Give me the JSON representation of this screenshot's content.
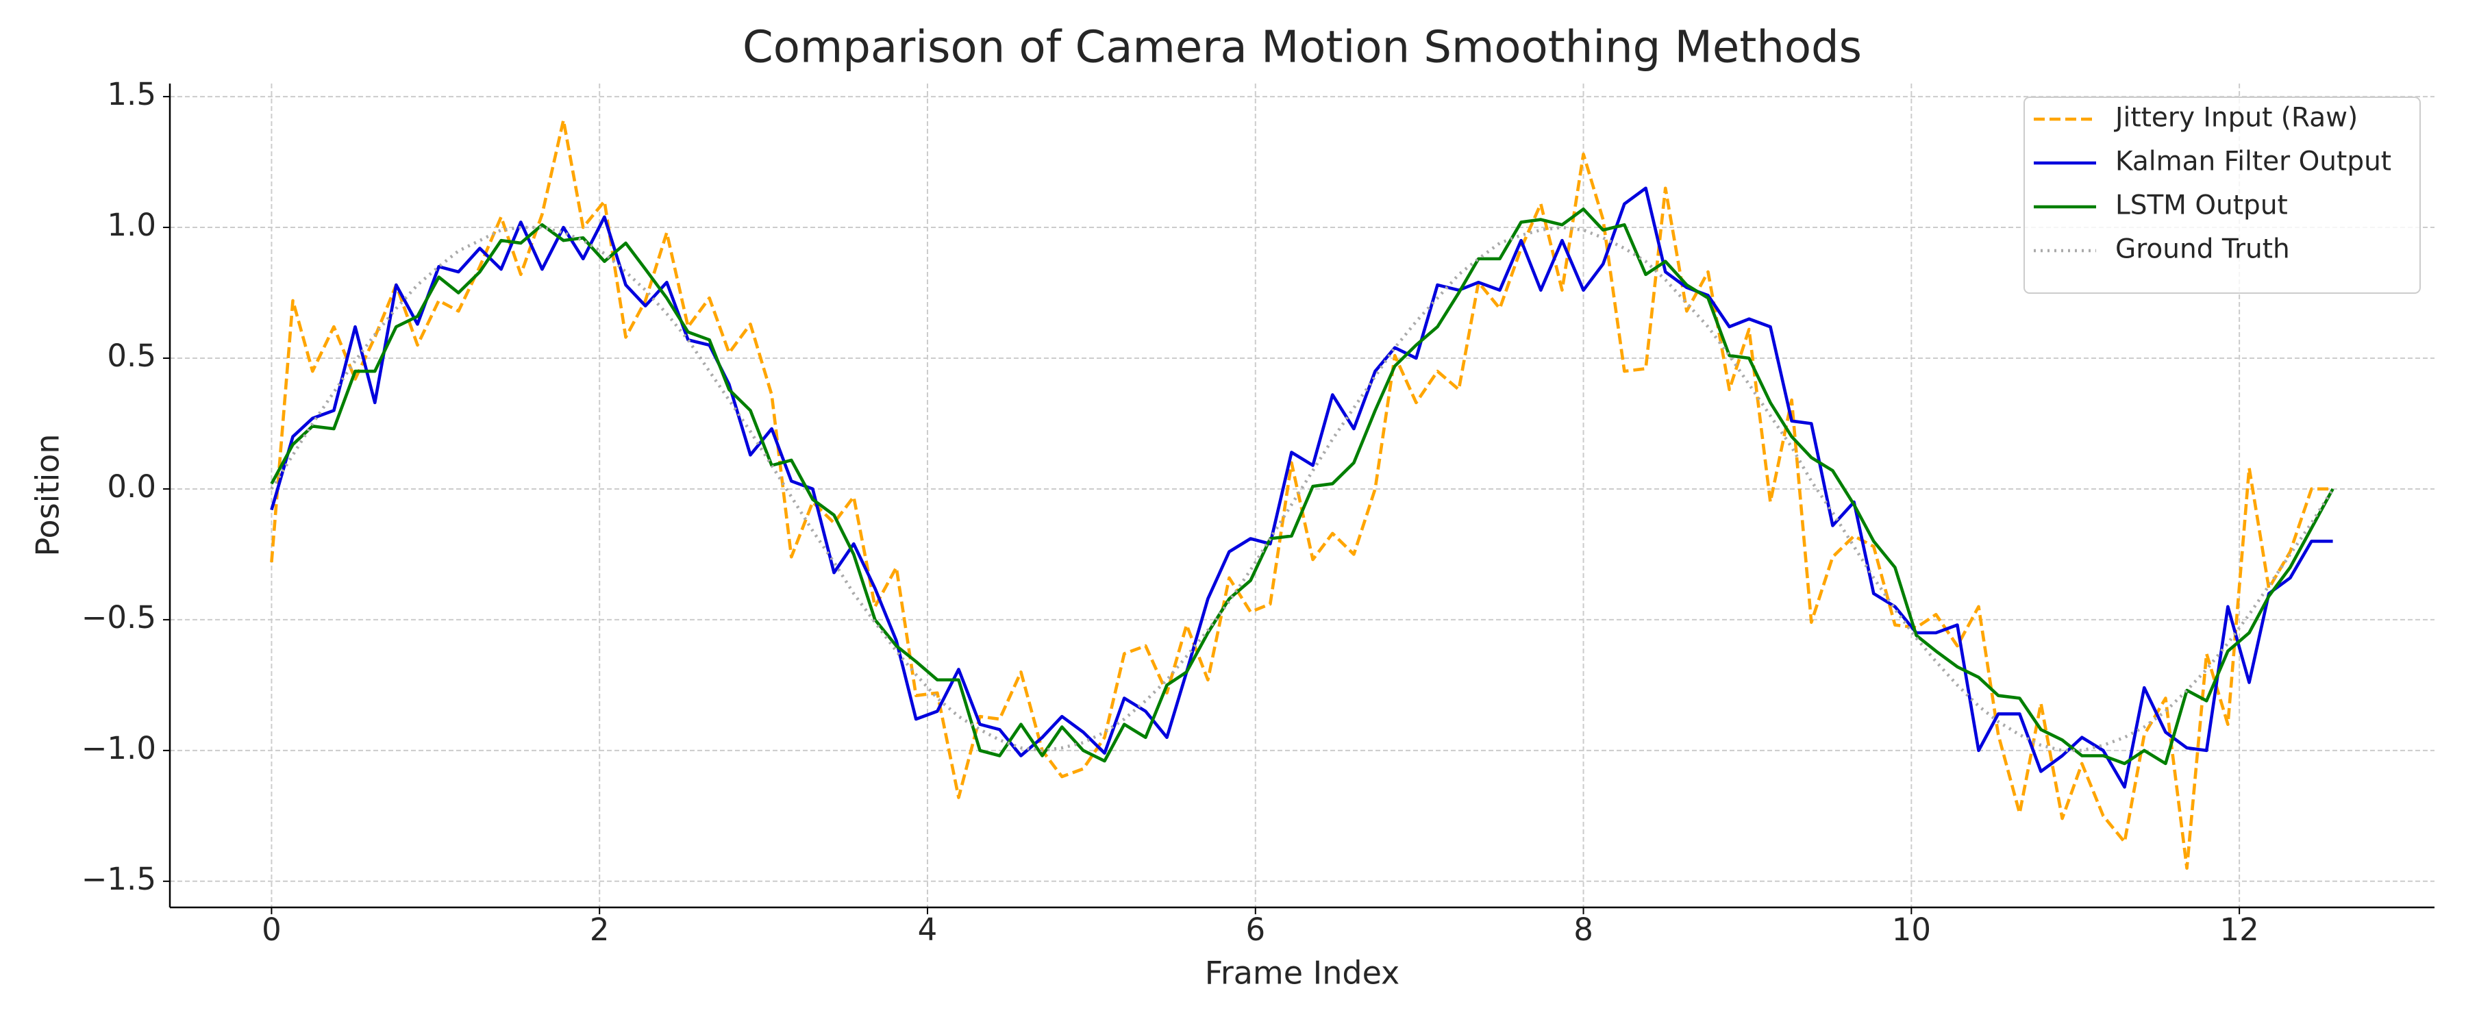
{
  "chart_data": {
    "type": "line",
    "title": "Comparison of Camera Motion Smoothing Methods",
    "xlabel": "Frame Index",
    "ylabel": "Position",
    "xlim": [
      -0.62,
      13.19
    ],
    "ylim": [
      -1.6,
      1.55
    ],
    "xticks": [
      0,
      2,
      4,
      6,
      8,
      10,
      12
    ],
    "yticks": [
      {
        "value": -1.5,
        "label": "−1.5"
      },
      {
        "value": -1.0,
        "label": "−1.0"
      },
      {
        "value": -0.5,
        "label": "−0.5"
      },
      {
        "value": 0.0,
        "label": "0.0"
      },
      0.5,
      {
        "value": 1.0,
        "label": "1.0"
      },
      1.5
    ],
    "grid": true,
    "legend": "upper right",
    "x": [
      0.0,
      0.13,
      0.25,
      0.38,
      0.51,
      0.63,
      0.76,
      0.89,
      1.02,
      1.14,
      1.27,
      1.4,
      1.52,
      1.65,
      1.78,
      1.9,
      2.03,
      2.16,
      2.28,
      2.41,
      2.54,
      2.67,
      2.79,
      2.92,
      3.05,
      3.17,
      3.3,
      3.43,
      3.55,
      3.68,
      3.81,
      3.93,
      4.06,
      4.19,
      4.32,
      4.44,
      4.57,
      4.7,
      4.82,
      4.95,
      5.08,
      5.2,
      5.33,
      5.46,
      5.58,
      5.71,
      5.84,
      5.97,
      6.09,
      6.22,
      6.35,
      6.47,
      6.6,
      6.73,
      6.85,
      6.98,
      7.11,
      7.24,
      7.36,
      7.49,
      7.62,
      7.74,
      7.87,
      8.0,
      8.12,
      8.25,
      8.38,
      8.5,
      8.63,
      8.76,
      8.89,
      9.01,
      9.14,
      9.27,
      9.39,
      9.52,
      9.65,
      9.77,
      9.9,
      10.03,
      10.15,
      10.28,
      10.41,
      10.53,
      10.66,
      10.79,
      10.92,
      11.04,
      11.17,
      11.3,
      11.42,
      11.55,
      11.68,
      11.8,
      11.93,
      12.06,
      12.18,
      12.31,
      12.44,
      12.57
    ],
    "series": [
      {
        "name": "Jittery Input (Raw)",
        "color": "#ffa500",
        "linestyle": "dashed",
        "values": [
          -0.28,
          0.72,
          0.45,
          0.62,
          0.42,
          0.58,
          0.78,
          0.55,
          0.72,
          0.68,
          0.85,
          1.04,
          0.82,
          1.05,
          1.41,
          1.0,
          1.1,
          0.58,
          0.72,
          0.98,
          0.62,
          0.73,
          0.52,
          0.63,
          0.36,
          -0.26,
          -0.05,
          -0.13,
          -0.03,
          -0.45,
          -0.3,
          -0.79,
          -0.78,
          -1.18,
          -0.87,
          -0.88,
          -0.7,
          -1.0,
          -1.1,
          -1.07,
          -0.95,
          -0.63,
          -0.6,
          -0.78,
          -0.52,
          -0.73,
          -0.34,
          -0.47,
          -0.44,
          0.1,
          -0.27,
          -0.17,
          -0.25,
          0.0,
          0.51,
          0.33,
          0.45,
          0.38,
          0.79,
          0.69,
          0.92,
          1.09,
          0.76,
          1.28,
          1.03,
          0.45,
          0.46,
          1.15,
          0.68,
          0.83,
          0.38,
          0.61,
          -0.05,
          0.34,
          -0.51,
          -0.26,
          -0.18,
          -0.22,
          -0.52,
          -0.53,
          -0.48,
          -0.6,
          -0.45,
          -0.94,
          -1.24,
          -0.82,
          -1.26,
          -1.05,
          -1.25,
          -1.35,
          -0.94,
          -0.8,
          -1.45,
          -0.63,
          -0.9,
          0.08,
          -0.38,
          -0.24,
          0.0,
          0.0
        ]
      },
      {
        "name": "Kalman Filter Output",
        "color": "#0000dd",
        "linestyle": "solid",
        "values": [
          -0.08,
          0.2,
          0.27,
          0.3,
          0.62,
          0.33,
          0.78,
          0.63,
          0.85,
          0.83,
          0.92,
          0.84,
          1.02,
          0.84,
          1.0,
          0.88,
          1.04,
          0.78,
          0.7,
          0.79,
          0.57,
          0.55,
          0.4,
          0.13,
          0.23,
          0.03,
          0.0,
          -0.32,
          -0.21,
          -0.38,
          -0.58,
          -0.88,
          -0.85,
          -0.69,
          -0.9,
          -0.92,
          -1.02,
          -0.95,
          -0.87,
          -0.93,
          -1.01,
          -0.8,
          -0.85,
          -0.95,
          -0.7,
          -0.42,
          -0.24,
          -0.19,
          -0.21,
          0.14,
          0.09,
          0.36,
          0.23,
          0.45,
          0.54,
          0.5,
          0.78,
          0.76,
          0.79,
          0.76,
          0.95,
          0.76,
          0.95,
          0.76,
          0.86,
          1.09,
          1.15,
          0.83,
          0.77,
          0.74,
          0.62,
          0.65,
          0.62,
          0.26,
          0.25,
          -0.14,
          -0.05,
          -0.4,
          -0.45,
          -0.55,
          -0.55,
          -0.52,
          -1.0,
          -0.86,
          -0.86,
          -1.08,
          -1.02,
          -0.95,
          -1.0,
          -1.14,
          -0.76,
          -0.93,
          -0.99,
          -1.0,
          -0.45,
          -0.74,
          -0.4,
          -0.34,
          -0.2,
          -0.2
        ]
      },
      {
        "name": "LSTM Output",
        "color": "#007f00",
        "linestyle": "solid",
        "values": [
          0.02,
          0.17,
          0.24,
          0.23,
          0.45,
          0.45,
          0.62,
          0.66,
          0.81,
          0.75,
          0.83,
          0.95,
          0.94,
          1.01,
          0.95,
          0.96,
          0.87,
          0.94,
          0.84,
          0.73,
          0.6,
          0.57,
          0.38,
          0.3,
          0.09,
          0.11,
          -0.04,
          -0.1,
          -0.25,
          -0.5,
          -0.6,
          -0.66,
          -0.73,
          -0.73,
          -1.0,
          -1.02,
          -0.9,
          -1.02,
          -0.91,
          -1.0,
          -1.04,
          -0.9,
          -0.95,
          -0.75,
          -0.7,
          -0.55,
          -0.42,
          -0.35,
          -0.19,
          -0.18,
          0.01,
          0.02,
          0.1,
          0.3,
          0.47,
          0.55,
          0.62,
          0.75,
          0.88,
          0.88,
          1.02,
          1.03,
          1.01,
          1.07,
          0.99,
          1.01,
          0.82,
          0.87,
          0.78,
          0.73,
          0.51,
          0.5,
          0.33,
          0.2,
          0.12,
          0.07,
          -0.06,
          -0.2,
          -0.3,
          -0.56,
          -0.62,
          -0.68,
          -0.72,
          -0.79,
          -0.8,
          -0.92,
          -0.96,
          -1.02,
          -1.02,
          -1.05,
          -1.0,
          -1.05,
          -0.77,
          -0.81,
          -0.62,
          -0.55,
          -0.41,
          -0.3,
          -0.15,
          0.0
        ]
      },
      {
        "name": "Ground Truth",
        "color": "#aaaaaa",
        "linestyle": "dotted",
        "values": [
          0.0,
          0.13,
          0.25,
          0.37,
          0.49,
          0.59,
          0.69,
          0.78,
          0.85,
          0.91,
          0.95,
          0.99,
          1.0,
          1.0,
          0.98,
          0.95,
          0.9,
          0.83,
          0.76,
          0.67,
          0.57,
          0.45,
          0.34,
          0.22,
          0.09,
          -0.03,
          -0.16,
          -0.28,
          -0.4,
          -0.51,
          -0.62,
          -0.71,
          -0.8,
          -0.87,
          -0.92,
          -0.96,
          -0.99,
          -1.0,
          -0.99,
          -0.97,
          -0.93,
          -0.88,
          -0.81,
          -0.73,
          -0.64,
          -0.54,
          -0.43,
          -0.31,
          -0.19,
          -0.06,
          0.07,
          0.19,
          0.31,
          0.43,
          0.54,
          0.64,
          0.73,
          0.82,
          0.88,
          0.94,
          0.97,
          0.99,
          1.0,
          0.99,
          0.96,
          0.92,
          0.87,
          0.8,
          0.71,
          0.62,
          0.51,
          0.4,
          0.28,
          0.16,
          0.03,
          -0.09,
          -0.22,
          -0.34,
          -0.46,
          -0.57,
          -0.66,
          -0.75,
          -0.83,
          -0.89,
          -0.94,
          -0.98,
          -1.0,
          -1.0,
          -0.98,
          -0.95,
          -0.91,
          -0.85,
          -0.77,
          -0.69,
          -0.59,
          -0.48,
          -0.37,
          -0.25,
          -0.13,
          0.0
        ]
      }
    ]
  }
}
